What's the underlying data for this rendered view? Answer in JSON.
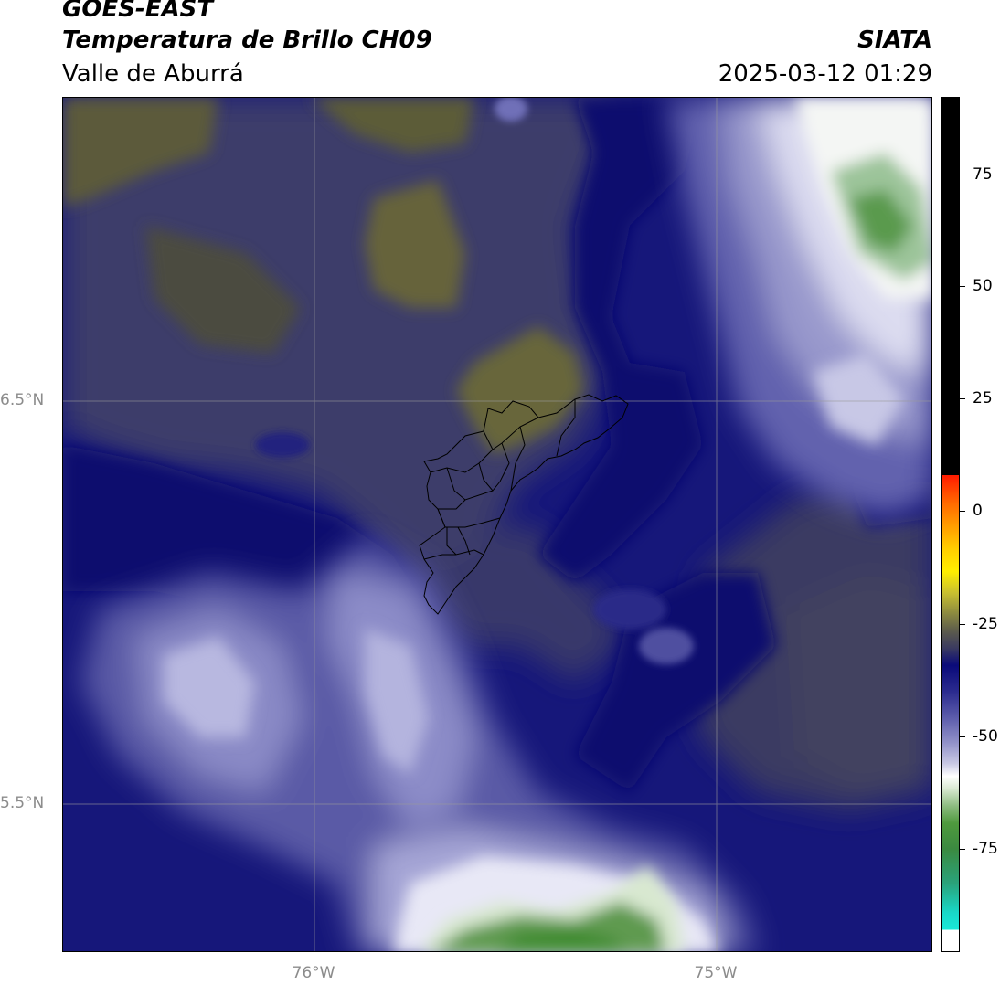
{
  "header": {
    "satellite": "GOES-EAST",
    "product": "Temperatura de Brillo CH09",
    "organization": "SIATA",
    "region": "Valle de Aburrá",
    "datetime": "2025-03-12 01:29"
  },
  "map": {
    "type": "satellite-brightness-temperature",
    "latitude_labels": [
      {
        "value": 6.5,
        "label": "6.5°N"
      },
      {
        "value": 5.5,
        "label": "5.5°N"
      }
    ],
    "longitude_labels": [
      {
        "value": -76,
        "label": "76°W"
      },
      {
        "value": -75,
        "label": "75°W"
      }
    ],
    "gridlines": true
  },
  "colorbar": {
    "ticks": [
      {
        "value": 75,
        "label": "75"
      },
      {
        "value": 50,
        "label": "50"
      },
      {
        "value": 25,
        "label": "25"
      },
      {
        "value": 0,
        "label": "0"
      },
      {
        "value": -25,
        "label": "-25"
      },
      {
        "value": -50,
        "label": "-50"
      },
      {
        "value": -75,
        "label": "-75"
      }
    ],
    "colors": {
      "warm": "#000000",
      "red": "#ff1a00",
      "orange": "#ff8c00",
      "yellow": "#ffee00",
      "olive": "#5c5b38",
      "navy": "#0a0a7a",
      "lavender": "#b0b0dc",
      "white": "#ffffff",
      "green": "#3f8f2e",
      "cyan": "#19e8d8"
    }
  }
}
